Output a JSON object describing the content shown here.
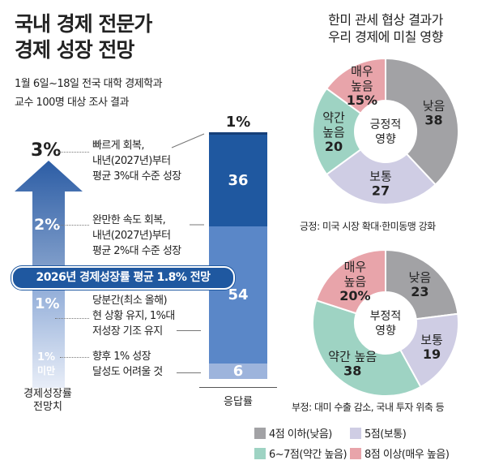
{
  "title": [
    "국내 경제 전문가",
    "경제 성장 전망"
  ],
  "subtitle": [
    "1월 6일~18일 전국 대학 경제학과",
    "교수 100명 대상 조사 결과"
  ],
  "arrows": {
    "labels": [
      "3%",
      "2%",
      "1%",
      "1%",
      "미만"
    ],
    "axis_label": [
      "경제성장률",
      "전망치"
    ]
  },
  "forecast_pill": "2026년 경제성장률 평균 1.8% 전망",
  "chart_data": [
    {
      "type": "bar",
      "stacked": true,
      "xlabel": "응답률",
      "unit": "%",
      "categories": [
        "빠르게 회복, 내년(2027년)부터 평균 3%대 수준 성장",
        "완만한 속도 회복, 내년(2027년)부터 평균 2%대 수준 성장",
        "당분간(최소 올해) 현 상황 유지, 1%대 저성장 기조 유지",
        "향후 1% 성장 달성도 어려울 것"
      ],
      "desc_lines": [
        [
          "빠르게 회복,",
          "내년(2027년)부터",
          "평균 3%대 수준 성장"
        ],
        [
          "완만한 속도 회복,",
          "내년(2027년)부터",
          "평균 2%대 수준 성장"
        ],
        [
          "당분간(최소 올해)",
          "현 상황 유지, 1%대",
          "저성장 기조 유지"
        ],
        [
          "향후 1% 성장",
          "달성도 어려울 것"
        ]
      ],
      "values": [
        1,
        36,
        54,
        6
      ],
      "value_labels": [
        "1%",
        "36",
        "54",
        "6"
      ],
      "colors": [
        "#163f78",
        "#1f58a0",
        "#5a87c8",
        "#9db4dc"
      ]
    },
    {
      "type": "pie",
      "donut": true,
      "title": [
        "한미 관세 협상 결과가",
        "우리 경제에 미칠 영향"
      ],
      "center_label": [
        "긍정적",
        "영향"
      ],
      "categories": [
        "낮음",
        "보통",
        "약간 높음",
        "매우 높음"
      ],
      "label_lines": [
        [
          "낮음"
        ],
        [
          "보통"
        ],
        [
          "약간",
          "높음"
        ],
        [
          "매우",
          "높음"
        ]
      ],
      "values": [
        38,
        27,
        20,
        15
      ],
      "value_labels": [
        "38",
        "27",
        "20",
        "15%"
      ],
      "caption": "긍정: 미국 시장 확대·한미동맹 강화"
    },
    {
      "type": "pie",
      "donut": true,
      "center_label": [
        "부정적",
        "영향"
      ],
      "categories": [
        "낮음",
        "보통",
        "약간 높음",
        "매우 높음"
      ],
      "label_lines": [
        [
          "낮음"
        ],
        [
          "보통"
        ],
        [
          "약간 높음"
        ],
        [
          "매우",
          "높음"
        ]
      ],
      "values": [
        23,
        19,
        38,
        20
      ],
      "value_labels": [
        "23",
        "19",
        "38",
        "20%"
      ],
      "caption": "부정: 대미 수출 감소, 국내 투자 위축 등"
    }
  ],
  "legend": [
    {
      "label": "4점 이하(낮음)",
      "color": "#a2a2a5"
    },
    {
      "label": "5점(보통)",
      "color": "#cfcde4"
    },
    {
      "label": "6~7점(약간 높음)",
      "color": "#9ed3c3"
    },
    {
      "label": "8점 이상(매우 높음)",
      "color": "#e8a4aa"
    }
  ]
}
